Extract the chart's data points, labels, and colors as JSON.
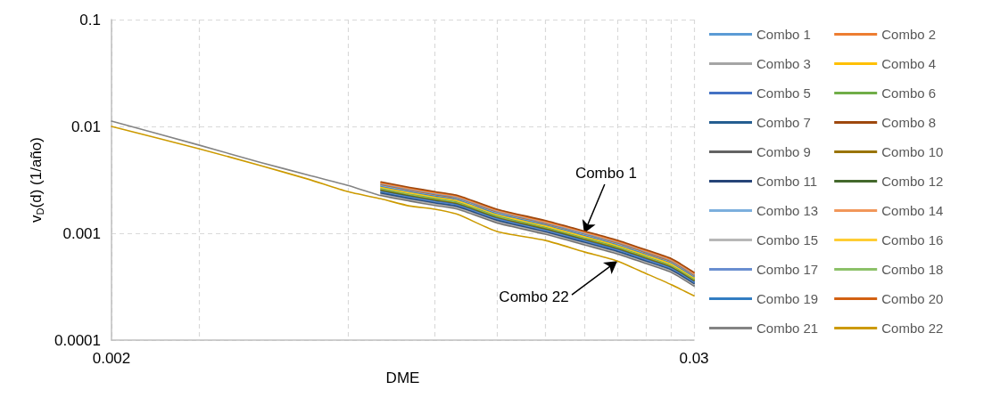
{
  "chart_data": {
    "type": "line",
    "xlabel": "DME",
    "ylabel": "v$_{D}$(d) (1/año)",
    "log": "xy",
    "grid": true,
    "legend": "right",
    "marker": "none",
    "line_style": "solid",
    "xlim": [
      0.002,
      0.03
    ],
    "xticks": [
      0.002,
      {
        "value": 0.003,
        "label": null
      },
      {
        "value": 0.006,
        "label": null
      },
      {
        "value": 0.009,
        "label": null
      },
      {
        "value": 0.012,
        "label": null
      },
      {
        "value": 0.015,
        "label": null
      },
      {
        "value": 0.018,
        "label": null
      },
      {
        "value": 0.021,
        "label": null
      },
      {
        "value": 0.024,
        "label": null
      },
      {
        "value": 0.027,
        "label": null
      },
      0.03
    ],
    "ylim": [
      0.0001,
      0.1
    ],
    "yticks": [
      0.0001,
      0.001,
      0.01,
      0.1
    ],
    "x": [
      0.002,
      0.003,
      0.004,
      0.005,
      0.006,
      0.007,
      0.008,
      0.009,
      0.01,
      0.012,
      0.015,
      0.018,
      0.021,
      0.024,
      0.027,
      0.03
    ],
    "annotations": [
      {
        "text": "Combo 1",
        "x": 0.018,
        "y": 0.001
      },
      {
        "text": "Combo 22",
        "x": 0.021,
        "y": 0.00055
      }
    ],
    "series": [
      {
        "name": "Combo 1",
        "color": "#5b9bd5",
        "values": [
          null,
          null,
          null,
          null,
          null,
          0.0029,
          0.00258,
          0.00234,
          0.00216,
          0.00161,
          0.00126,
          0.001,
          0.000824,
          0.00067,
          0.000554,
          0.000412
        ]
      },
      {
        "name": "Combo 2",
        "color": "#ed7d31",
        "values": [
          null,
          null,
          null,
          null,
          null,
          0.00299,
          0.00265,
          0.00242,
          0.00223,
          0.00166,
          0.0013,
          0.00104,
          0.000849,
          0.00069,
          0.000571,
          0.000425
        ]
      },
      {
        "name": "Combo 3",
        "color": "#a5a5a5",
        "values": [
          null,
          null,
          null,
          null,
          null,
          0.00235,
          0.00209,
          0.0019,
          0.00176,
          0.00131,
          0.00103,
          0.000816,
          0.000669,
          0.000544,
          0.00045,
          0.000335
        ]
      },
      {
        "name": "Combo 4",
        "color": "#ffc000",
        "values": [
          null,
          null,
          null,
          null,
          null,
          0.00273,
          0.00243,
          0.00221,
          0.00204,
          0.00152,
          0.00119,
          0.000947,
          0.000777,
          0.000631,
          0.000522,
          0.000388
        ]
      },
      {
        "name": "Combo 5",
        "color": "#4472c4",
        "values": [
          null,
          null,
          null,
          null,
          null,
          0.0025,
          0.00222,
          0.00202,
          0.00186,
          0.00139,
          0.00109,
          0.000866,
          0.00071,
          0.000577,
          0.000477,
          0.000355
        ]
      },
      {
        "name": "Combo 6",
        "color": "#70ad47",
        "values": [
          null,
          null,
          null,
          null,
          null,
          0.00265,
          0.00236,
          0.00214,
          0.00198,
          0.00147,
          0.00115,
          0.000919,
          0.000754,
          0.000613,
          0.000507,
          0.000377
        ]
      },
      {
        "name": "Combo 7",
        "color": "#255e91",
        "values": [
          null,
          null,
          null,
          null,
          null,
          0.00242,
          0.00215,
          0.00196,
          0.00181,
          0.00135,
          0.00106,
          0.00084,
          0.000689,
          0.00056,
          0.000463,
          0.000345
        ]
      },
      {
        "name": "Combo 8",
        "color": "#9e480e",
        "values": [
          null,
          null,
          null,
          null,
          null,
          0.00303,
          0.00269,
          0.00245,
          0.00226,
          0.00168,
          0.00132,
          0.00105,
          0.000862,
          0.0007,
          0.000579,
          0.000431
        ]
      },
      {
        "name": "Combo 9",
        "color": "#636363",
        "values": [
          null,
          null,
          null,
          null,
          null,
          0.00228,
          0.00203,
          0.00185,
          0.00171,
          0.00127,
          0.000995,
          0.000792,
          0.00065,
          0.000528,
          0.000436,
          0.000325
        ]
      },
      {
        "name": "Combo 10",
        "color": "#997300",
        "values": [
          null,
          null,
          null,
          null,
          null,
          0.00257,
          0.00229,
          0.00208,
          0.00192,
          0.00143,
          0.00112,
          0.000892,
          0.000732,
          0.000594,
          0.000491,
          0.000366
        ]
      },
      {
        "name": "Combo 11",
        "color": "#264478",
        "values": [
          null,
          null,
          null,
          null,
          null,
          0.00239,
          0.00212,
          0.00193,
          0.00178,
          0.00133,
          0.00104,
          0.000828,
          0.000679,
          0.000552,
          0.000456,
          0.00034
        ]
      },
      {
        "name": "Combo 12",
        "color": "#43682b",
        "values": [
          null,
          null,
          null,
          null,
          null,
          0.00253,
          0.00225,
          0.00205,
          0.00189,
          0.00141,
          0.0011,
          0.000878,
          0.000721,
          0.000586,
          0.000484,
          0.00036
        ]
      },
      {
        "name": "Combo 13",
        "color": "#7cafdd",
        "values": [
          null,
          null,
          null,
          null,
          null,
          0.00281,
          0.0025,
          0.00228,
          0.0021,
          0.00156,
          0.00123,
          0.000975,
          0.0008,
          0.00065,
          0.000538,
          0.0004
        ]
      },
      {
        "name": "Combo 14",
        "color": "#f1975a",
        "values": [
          null,
          null,
          null,
          null,
          null,
          0.00294,
          0.00261,
          0.00238,
          0.0022,
          0.00163,
          0.00128,
          0.00102,
          0.000836,
          0.00068,
          0.000562,
          0.000418
        ]
      },
      {
        "name": "Combo 15",
        "color": "#b7b7b7",
        "values": [
          null,
          null,
          null,
          null,
          null,
          0.00232,
          0.00206,
          0.00187,
          0.00173,
          0.00129,
          0.00101,
          0.000803,
          0.000659,
          0.000536,
          0.000443,
          0.00033
        ]
      },
      {
        "name": "Combo 16",
        "color": "#ffcd33",
        "values": [
          null,
          null,
          null,
          null,
          null,
          0.00269,
          0.00239,
          0.00218,
          0.00201,
          0.0015,
          0.00117,
          0.000933,
          0.000765,
          0.000622,
          0.000514,
          0.000383
        ]
      },
      {
        "name": "Combo 17",
        "color": "#698ed0",
        "values": [
          null,
          null,
          null,
          null,
          null,
          0.00246,
          0.00219,
          0.00199,
          0.00184,
          0.00137,
          0.00107,
          0.000853,
          0.0007,
          0.000568,
          0.00047,
          0.00035
        ]
      },
      {
        "name": "Combo 18",
        "color": "#8cc168",
        "values": [
          null,
          null,
          null,
          null,
          null,
          0.00261,
          0.00232,
          0.00211,
          0.00195,
          0.00145,
          0.00114,
          0.000906,
          0.000743,
          0.000604,
          0.000499,
          0.000372
        ]
      },
      {
        "name": "Combo 19",
        "color": "#327dc2",
        "values": [
          null,
          null,
          null,
          null,
          null,
          0.00277,
          0.00246,
          0.00224,
          0.00207,
          0.00154,
          0.00121,
          0.000961,
          0.000788,
          0.000641,
          0.00053,
          0.000394
        ]
      },
      {
        "name": "Combo 20",
        "color": "#d26012",
        "values": [
          null,
          null,
          null,
          null,
          null,
          0.00286,
          0.00254,
          0.00231,
          0.00213,
          0.00159,
          0.00124,
          0.00099,
          0.000812,
          0.00066,
          0.000546,
          0.000406
        ]
      },
      {
        "name": "Combo 21",
        "color": "#848484",
        "values": [
          0.0112,
          0.0067,
          0.0046,
          0.0035,
          0.0028,
          0.00225,
          0.002,
          0.00182,
          0.00168,
          0.00125,
          0.00098,
          0.00078,
          0.00064,
          0.00052,
          0.00043,
          0.00032
        ]
      },
      {
        "name": "Combo 22",
        "color": "#cc9a00",
        "values": [
          0.01,
          0.0062,
          0.0043,
          0.0032,
          0.00245,
          0.0021,
          0.0018,
          0.00168,
          0.0015,
          0.00104,
          0.00086,
          0.00067,
          0.00055,
          0.00042,
          0.00033,
          0.00026
        ]
      }
    ]
  }
}
